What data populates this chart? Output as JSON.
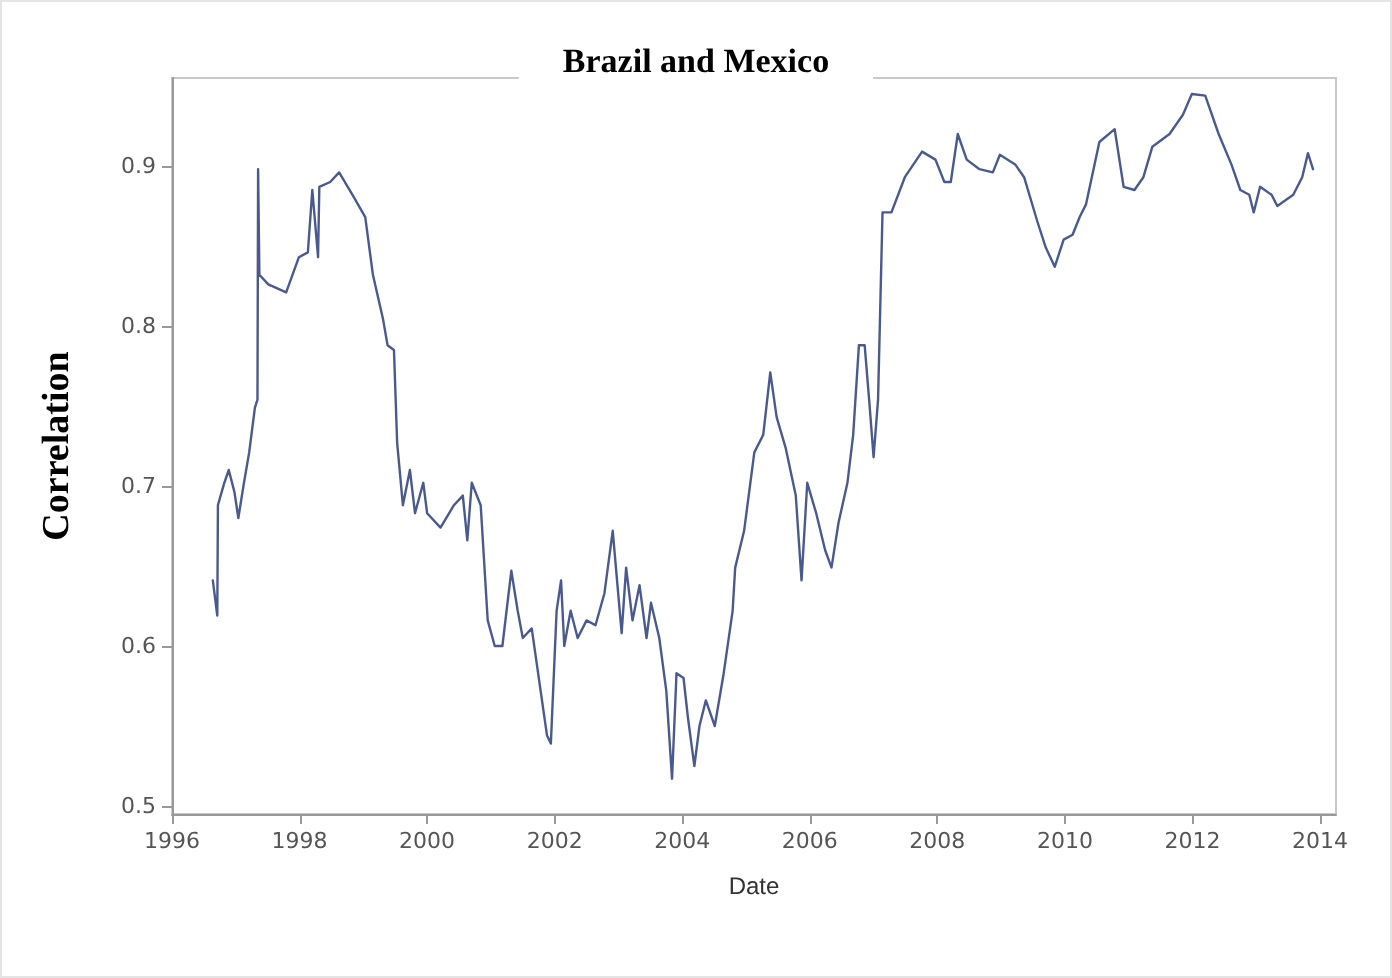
{
  "chart_data": {
    "type": "line",
    "title": "Brazil and Mexico",
    "xlabel": "Date",
    "ylabel": "Correlation",
    "xlim": [
      1996,
      2014.25
    ],
    "xticks": [
      1996,
      1998,
      2000,
      2002,
      2004,
      2006,
      2008,
      2010,
      2012,
      2014
    ],
    "ylim": [
      0.495,
      0.955
    ],
    "yticks": [
      0.5,
      0.6,
      0.7,
      0.8,
      0.9
    ],
    "grid": false,
    "marker": "none",
    "line_style": "solid",
    "series": [
      {
        "color": "#4a5a8f",
        "x": [
          1996.64,
          1996.71,
          1996.72,
          1996.82,
          1996.89,
          1996.98,
          1997.04,
          1997.12,
          1997.21,
          1997.3,
          1997.34,
          1997.35,
          1997.37,
          1997.51,
          1997.79,
          1997.99,
          1998.13,
          1998.2,
          1998.29,
          1998.31,
          1998.48,
          1998.62,
          1998.83,
          1999.03,
          1999.15,
          1999.31,
          1999.38,
          1999.48,
          1999.53,
          1999.62,
          1999.73,
          1999.81,
          1999.94,
          2000.0,
          2000.21,
          2000.42,
          2000.56,
          2000.63,
          2000.7,
          2000.84,
          2000.95,
          2001.06,
          2001.18,
          2001.32,
          2001.42,
          2001.5,
          2001.64,
          2001.74,
          2001.88,
          2001.94,
          2002.03,
          2002.1,
          2002.15,
          2002.25,
          2002.36,
          2002.5,
          2002.64,
          2002.78,
          2002.91,
          2003.05,
          2003.12,
          2003.22,
          2003.33,
          2003.44,
          2003.51,
          2003.64,
          2003.75,
          2003.84,
          2003.91,
          2004.02,
          2004.09,
          2004.19,
          2004.27,
          2004.37,
          2004.51,
          2004.65,
          2004.79,
          2004.83,
          2004.97,
          2005.13,
          2005.27,
          2005.38,
          2005.48,
          2005.62,
          2005.78,
          2005.87,
          2005.96,
          2006.1,
          2006.24,
          2006.34,
          2006.45,
          2006.59,
          2006.68,
          2006.77,
          2006.86,
          2006.93,
          2007.0,
          2007.07,
          2007.14,
          2007.28,
          2007.49,
          2007.76,
          2007.97,
          2008.11,
          2008.21,
          2008.32,
          2008.46,
          2008.66,
          2008.87,
          2008.98,
          2009.22,
          2009.36,
          2009.57,
          2009.7,
          2009.84,
          2009.98,
          2010.12,
          2010.23,
          2010.33,
          2010.54,
          2010.78,
          2010.92,
          2011.09,
          2011.23,
          2011.37,
          2011.64,
          2011.85,
          2011.99,
          2012.2,
          2012.41,
          2012.61,
          2012.75,
          2012.89,
          2012.96,
          2013.06,
          2013.24,
          2013.33,
          2013.58,
          2013.72,
          2013.81,
          2013.89
        ],
        "values": [
          0.641,
          0.619,
          0.688,
          0.702,
          0.71,
          0.696,
          0.68,
          0.7,
          0.721,
          0.749,
          0.754,
          0.898,
          0.832,
          0.826,
          0.821,
          0.843,
          0.846,
          0.885,
          0.843,
          0.887,
          0.89,
          0.896,
          0.882,
          0.868,
          0.832,
          0.804,
          0.788,
          0.785,
          0.727,
          0.688,
          0.71,
          0.683,
          0.702,
          0.683,
          0.674,
          0.688,
          0.694,
          0.666,
          0.702,
          0.688,
          0.616,
          0.6,
          0.6,
          0.647,
          0.622,
          0.605,
          0.611,
          0.583,
          0.544,
          0.539,
          0.622,
          0.641,
          0.6,
          0.622,
          0.605,
          0.616,
          0.613,
          0.633,
          0.672,
          0.608,
          0.649,
          0.616,
          0.638,
          0.605,
          0.627,
          0.605,
          0.572,
          0.517,
          0.583,
          0.58,
          0.555,
          0.525,
          0.55,
          0.566,
          0.55,
          0.583,
          0.622,
          0.649,
          0.672,
          0.721,
          0.732,
          0.771,
          0.743,
          0.724,
          0.694,
          0.641,
          0.702,
          0.683,
          0.66,
          0.649,
          0.677,
          0.702,
          0.732,
          0.788,
          0.788,
          0.754,
          0.718,
          0.754,
          0.871,
          0.871,
          0.893,
          0.909,
          0.904,
          0.89,
          0.89,
          0.92,
          0.904,
          0.898,
          0.896,
          0.907,
          0.901,
          0.893,
          0.865,
          0.849,
          0.837,
          0.854,
          0.857,
          0.868,
          0.876,
          0.915,
          0.923,
          0.887,
          0.885,
          0.893,
          0.912,
          0.92,
          0.932,
          0.945,
          0.944,
          0.92,
          0.901,
          0.885,
          0.882,
          0.871,
          0.887,
          0.882,
          0.875,
          0.882,
          0.893,
          0.908,
          0.898
        ]
      }
    ]
  }
}
